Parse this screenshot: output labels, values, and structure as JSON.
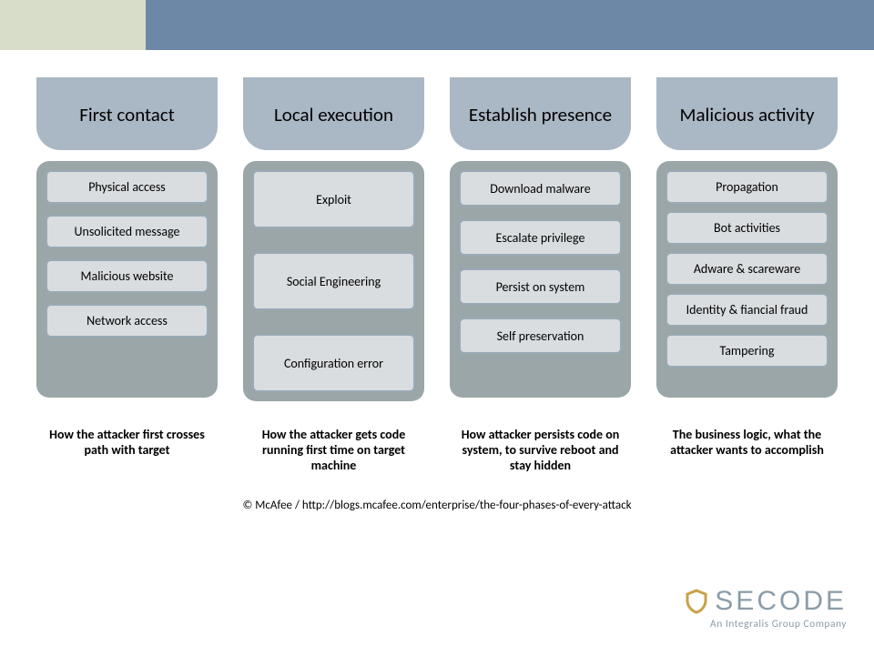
{
  "layout": {
    "topband_color_left": "#d7ddc8",
    "topband_color_right": "#6d88a7",
    "column_header_bg": "#aab7c4",
    "column_header_text": "#000000",
    "stack_bg": "#9aa6a8",
    "box_bg": "#d9dde0",
    "box_border": "#99aab5",
    "box_text": "#000000",
    "caption_text": "#000000",
    "logo_text_color": "#8a9ca8",
    "logo_accent": "#c8a24a",
    "logo_dot": "#c8a24a",
    "logo_tag_color": "#8a9ca8"
  },
  "columns": [
    {
      "title": "First contact",
      "stack_gap": 12,
      "box_min_h": 34,
      "boxes": [
        "Physical access",
        "Unsolicited message",
        "Malicious website",
        "Network access"
      ],
      "caption": "How the attacker first crosses path with target"
    },
    {
      "title": "Local execution",
      "stack_gap": 26,
      "box_min_h": 64,
      "stack_justify": "center",
      "boxes": [
        "Exploit",
        "Social Engineering",
        "Configuration error"
      ],
      "caption": "How the attacker gets code running first time on target machine"
    },
    {
      "title": "Establish presence",
      "stack_gap": 14,
      "box_min_h": 40,
      "boxes": [
        "Download malware",
        "Escalate privilege",
        "Persist on system",
        "Self preservation"
      ],
      "caption": "How attacker persists code on system, to survive reboot and stay hidden"
    },
    {
      "title": "Malicious activity",
      "stack_gap": 8,
      "box_min_h": 30,
      "boxes": [
        "Propagation",
        "Bot activities",
        "Adware & scareware",
        "Identity & fiancial fraud",
        "Tampering"
      ],
      "caption": "The business logic, what the attacker wants to accomplish"
    }
  ],
  "footer": "© McAfee / http://blogs.mcafee.com/enterprise/the-four-phases-of-every-attack",
  "logo": {
    "name": "SECODE",
    "tag": "An Integralis Group Company"
  }
}
